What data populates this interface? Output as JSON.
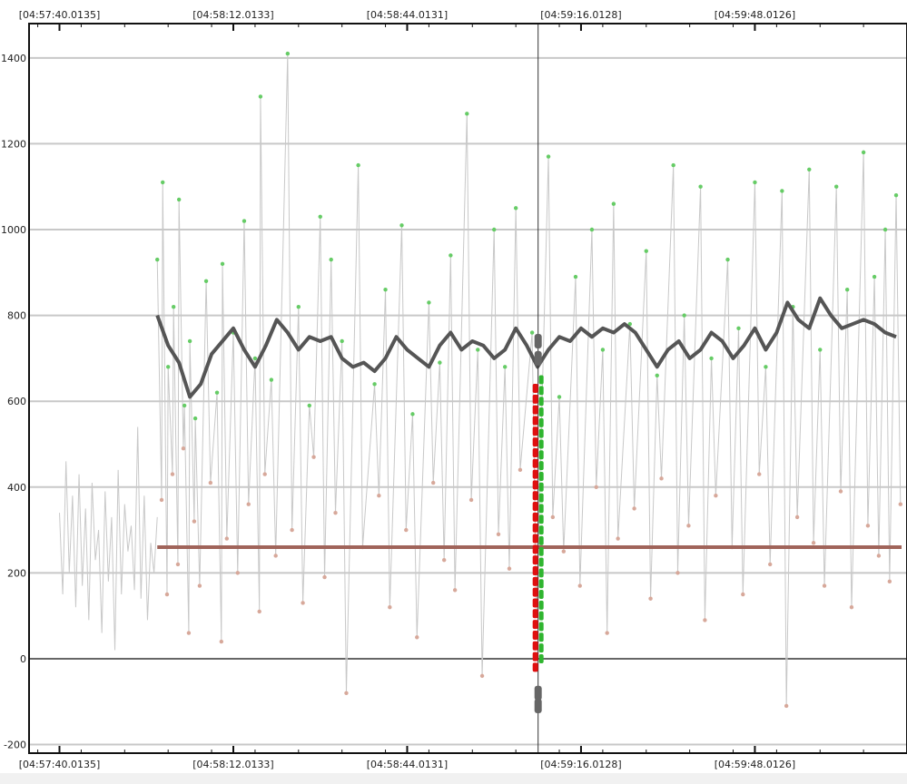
{
  "chart_data": {
    "type": "scatter",
    "title": "",
    "xlabel": "",
    "ylabel": "",
    "ylim": [
      -220,
      1480
    ],
    "y_ticks": [
      -200,
      0,
      200,
      400,
      600,
      800,
      1000,
      1200,
      1400
    ],
    "y_tick_labels": [
      "-200",
      "0",
      "200",
      "400",
      "600",
      "800",
      "1000",
      "1200",
      "1400"
    ],
    "x_tick_labels_top": [
      "[04:57:40.0135]",
      "[04:58:12.0133]",
      "[04:58:44.0131]",
      "[04:59:16.0128]",
      "[04:59:48.0126]"
    ],
    "x_tick_labels_bottom": [
      "[04:57:40.0135]",
      "[04:58:12.0133]",
      "[04:58:44.0131]",
      "[04:59:16.0128]",
      "[04:59:48.0126]"
    ],
    "x_ticks_seconds": [
      0,
      32,
      64,
      96,
      128
    ],
    "xlim_seconds": [
      -5.6,
      156
    ],
    "cursor_seconds": 88.1,
    "grid": true,
    "series": [
      {
        "color": "#c8c8c8",
        "kind": "raw-trace",
        "x": [
          0,
          0.6,
          1.2,
          1.8,
          2.4,
          3.0,
          3.6,
          4.2,
          4.8,
          5.4,
          6.0,
          6.6,
          7.2,
          7.8,
          8.4,
          9.0,
          9.6,
          10.2,
          10.8,
          11.4,
          12.0,
          12.6,
          13.2,
          13.8,
          14.4,
          15.0,
          15.6,
          16.2,
          16.8,
          17.4,
          18.0
        ],
        "y": [
          340,
          150,
          460,
          200,
          380,
          120,
          430,
          170,
          350,
          90,
          410,
          230,
          300,
          60,
          390,
          180,
          330,
          20,
          440,
          150,
          360,
          250,
          310,
          160,
          540,
          140,
          380,
          90,
          270,
          200,
          330
        ]
      },
      {
        "color": "#66cc66",
        "kind": "green-points",
        "x": [
          18,
          19,
          20,
          21,
          22,
          23,
          24,
          25,
          27,
          29,
          30,
          32,
          34,
          36,
          37,
          39,
          42,
          44,
          46,
          48,
          50,
          52,
          55,
          58,
          60,
          63,
          65,
          68,
          70,
          72,
          75,
          77,
          80,
          82,
          84,
          87,
          90,
          92,
          95,
          98,
          100,
          102,
          105,
          108,
          110,
          113,
          115,
          118,
          120,
          123,
          125,
          128,
          130,
          133,
          135,
          138,
          140,
          143,
          145,
          148,
          150,
          152,
          154
        ],
        "y": [
          930,
          1110,
          680,
          820,
          1070,
          590,
          740,
          560,
          880,
          620,
          920,
          760,
          1020,
          700,
          1310,
          650,
          1410,
          820,
          590,
          1030,
          930,
          740,
          1150,
          640,
          860,
          1010,
          570,
          830,
          690,
          940,
          1270,
          720,
          1000,
          680,
          1050,
          760,
          1170,
          610,
          890,
          1000,
          720,
          1060,
          780,
          950,
          660,
          1150,
          800,
          1100,
          700,
          930,
          770,
          1110,
          680,
          1090,
          820,
          1140,
          720,
          1100,
          860,
          1180,
          890,
          1000,
          1080
        ]
      },
      {
        "color": "#d7a89a",
        "kind": "pink-points",
        "x": [
          18,
          19,
          20,
          21,
          22,
          23,
          24,
          25,
          27,
          29,
          30,
          32,
          34,
          36,
          37,
          39,
          42,
          44,
          46,
          48,
          50,
          52,
          55,
          58,
          60,
          63,
          65,
          68,
          70,
          72,
          75,
          77,
          80,
          82,
          84,
          87,
          90,
          92,
          95,
          98,
          100,
          102,
          105,
          108,
          110,
          113,
          115,
          118,
          120,
          123,
          125,
          128,
          130,
          133,
          135,
          138,
          140,
          143,
          145,
          148,
          150,
          152,
          154
        ],
        "y": [
          370,
          150,
          430,
          220,
          490,
          60,
          320,
          170,
          410,
          40,
          280,
          200,
          360,
          110,
          430,
          240,
          300,
          130,
          470,
          190,
          340,
          -80,
          260,
          380,
          120,
          300,
          50,
          410,
          230,
          160,
          370,
          -40,
          290,
          210,
          440,
          100,
          330,
          250,
          170,
          400,
          60,
          280,
          350,
          140,
          420,
          200,
          310,
          90,
          380,
          260,
          150,
          430,
          220,
          -110,
          330,
          270,
          170,
          390,
          120,
          310,
          240,
          180,
          360
        ]
      },
      {
        "color": "#555555",
        "kind": "smoothed-line",
        "x": [
          18,
          20,
          22,
          24,
          26,
          28,
          30,
          32,
          34,
          36,
          38,
          40,
          42,
          44,
          46,
          48,
          50,
          52,
          54,
          56,
          58,
          60,
          62,
          64,
          66,
          68,
          70,
          72,
          74,
          76,
          78,
          80,
          82,
          84,
          86,
          88,
          90,
          92,
          94,
          96,
          98,
          100,
          102,
          104,
          106,
          108,
          110,
          112,
          114,
          116,
          118,
          120,
          122,
          124,
          126,
          128,
          130,
          132,
          134,
          136,
          138,
          140,
          142,
          144,
          146,
          148,
          150,
          152,
          154
        ],
        "y": [
          800,
          730,
          690,
          610,
          640,
          710,
          740,
          770,
          720,
          680,
          730,
          790,
          760,
          720,
          750,
          740,
          750,
          700,
          680,
          690,
          670,
          700,
          750,
          720,
          700,
          680,
          730,
          760,
          720,
          740,
          730,
          700,
          720,
          770,
          730,
          680,
          720,
          750,
          740,
          770,
          750,
          770,
          760,
          780,
          760,
          720,
          680,
          720,
          740,
          700,
          720,
          760,
          740,
          700,
          730,
          770,
          720,
          760,
          830,
          790,
          770,
          840,
          800,
          770,
          780,
          790,
          780,
          760,
          750
        ]
      },
      {
        "color": "#a0645a",
        "kind": "mean-line",
        "x": [
          18,
          155
        ],
        "y": [
          260,
          260
        ]
      }
    ],
    "cursor_markers": {
      "red": [
        630,
        605,
        580,
        555,
        530,
        505,
        480,
        455,
        430,
        405,
        380,
        355,
        330,
        305,
        280,
        255,
        230,
        205,
        180,
        155,
        130,
        105,
        80,
        55,
        30,
        5,
        -20
      ],
      "green": [
        650,
        625,
        600,
        575,
        550,
        525,
        500,
        475,
        450,
        425,
        400,
        375,
        350,
        325,
        300,
        275,
        250,
        225,
        200,
        175,
        150,
        125,
        100,
        75,
        50,
        25,
        0
      ],
      "gray": [
        740,
        700,
        -80,
        -110
      ]
    }
  }
}
